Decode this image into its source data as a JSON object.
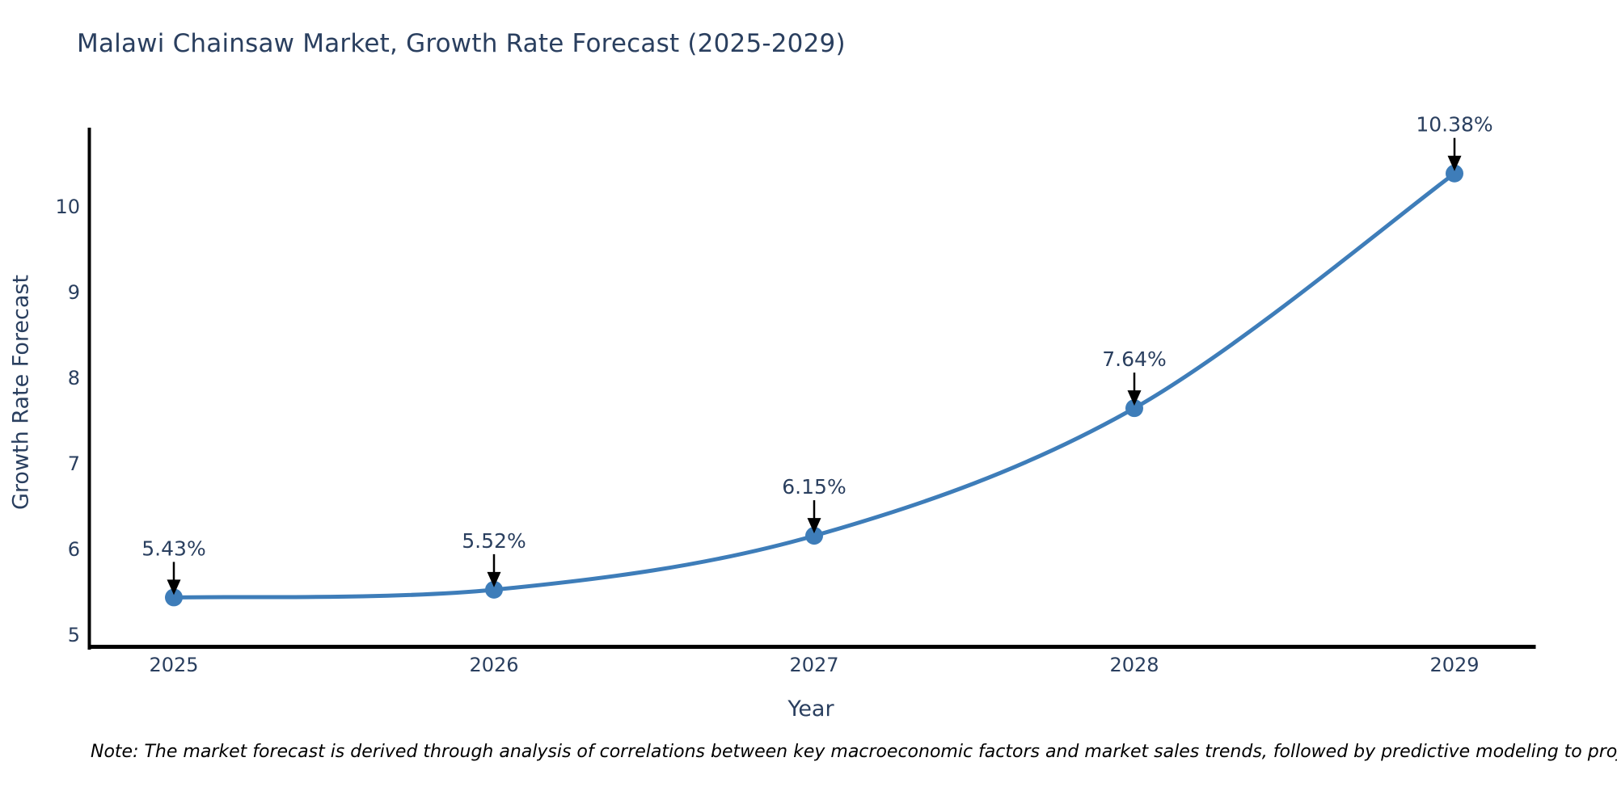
{
  "chart_data": {
    "type": "line",
    "title": "Malawi Chainsaw Market, Growth Rate Forecast (2025-2029)",
    "xlabel": "Year",
    "ylabel": "Growth Rate Forecast",
    "categories": [
      "2025",
      "2026",
      "2027",
      "2028",
      "2029"
    ],
    "x": [
      2025,
      2026,
      2027,
      2028,
      2029
    ],
    "values": [
      5.43,
      5.52,
      6.15,
      7.64,
      10.38
    ],
    "point_labels": [
      "5.43%",
      "5.52%",
      "6.15%",
      "7.64%",
      "10.38%"
    ],
    "yticks": [
      5,
      6,
      7,
      8,
      9,
      10
    ],
    "ylim": [
      5,
      10.9
    ],
    "grid": false,
    "legend": "none",
    "line_color": "#3e7db9",
    "marker_color": "#3e7db9",
    "axis_color": "#000000",
    "text_color": "#2a3f5f",
    "annotation_arrow_color": "#000000",
    "note": "Note: The market forecast is derived through analysis of correlations between key macroeconomic factors and market sales trends, followed by predictive modeling to project future sales"
  }
}
